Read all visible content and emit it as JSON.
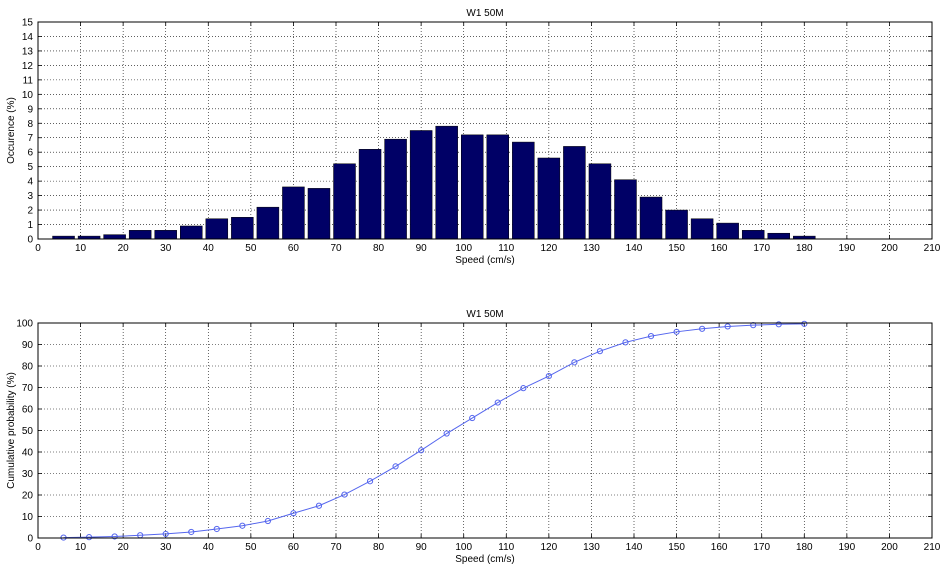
{
  "chart_data": [
    {
      "type": "bar",
      "title": "W1 50M",
      "xlabel": "Speed (cm/s)",
      "ylabel": "Occurence (%)",
      "xlim": [
        0,
        210
      ],
      "ylim": [
        0,
        15
      ],
      "xticks": [
        0,
        10,
        20,
        30,
        40,
        50,
        60,
        70,
        80,
        90,
        100,
        110,
        120,
        130,
        140,
        150,
        160,
        170,
        180,
        190,
        200,
        210
      ],
      "yticks": [
        0,
        1,
        2,
        3,
        4,
        5,
        6,
        7,
        8,
        9,
        10,
        11,
        12,
        13,
        14,
        15
      ],
      "grid": true,
      "bar_color": "#000066",
      "bin_width": 6,
      "x": [
        6,
        12,
        18,
        24,
        30,
        36,
        42,
        48,
        54,
        60,
        66,
        72,
        78,
        84,
        90,
        96,
        102,
        108,
        114,
        120,
        126,
        132,
        138,
        144,
        150,
        156,
        162,
        168,
        174,
        180
      ],
      "values": [
        0.2,
        0.2,
        0.3,
        0.6,
        0.6,
        0.9,
        1.4,
        1.5,
        2.2,
        3.6,
        3.5,
        5.2,
        6.2,
        6.9,
        7.5,
        7.8,
        7.2,
        7.2,
        6.7,
        5.6,
        6.4,
        5.2,
        4.1,
        2.9,
        2.0,
        1.4,
        1.1,
        0.6,
        0.4,
        0.2
      ]
    },
    {
      "type": "line",
      "title": "W1 50M",
      "xlabel": "Speed (cm/s)",
      "ylabel": "Cumulative probability (%)",
      "xlim": [
        0,
        210
      ],
      "ylim": [
        0,
        100
      ],
      "xticks": [
        0,
        10,
        20,
        30,
        40,
        50,
        60,
        70,
        80,
        90,
        100,
        110,
        120,
        130,
        140,
        150,
        160,
        170,
        180,
        190,
        200,
        210
      ],
      "yticks": [
        0,
        10,
        20,
        30,
        40,
        50,
        60,
        70,
        80,
        90,
        100
      ],
      "grid": true,
      "line_color": "#5566ee",
      "marker": "circle",
      "x": [
        6,
        12,
        18,
        24,
        30,
        36,
        42,
        48,
        54,
        60,
        66,
        72,
        78,
        84,
        90,
        96,
        102,
        108,
        114,
        120,
        126,
        132,
        138,
        144,
        150,
        156,
        162,
        168,
        174,
        180
      ],
      "values": [
        0.2,
        0.4,
        0.7,
        1.3,
        1.9,
        2.8,
        4.2,
        5.7,
        7.9,
        11.5,
        15.0,
        20.2,
        26.4,
        33.3,
        40.8,
        48.6,
        55.8,
        63.0,
        69.7,
        75.3,
        81.7,
        86.9,
        91.0,
        93.9,
        95.9,
        97.3,
        98.4,
        99.0,
        99.4,
        99.6
      ]
    }
  ]
}
